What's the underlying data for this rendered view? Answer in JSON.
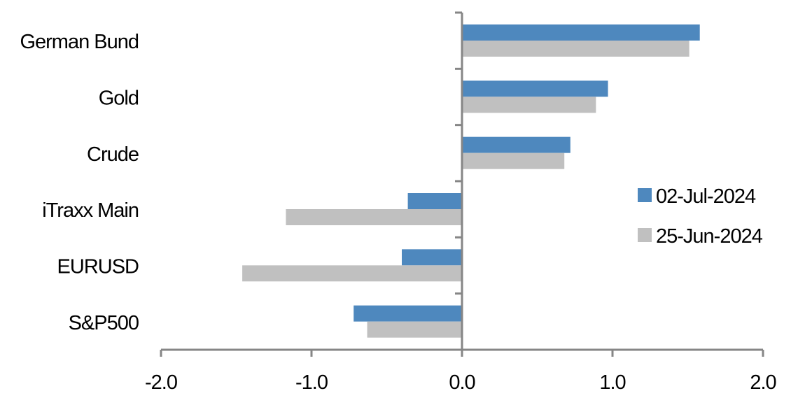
{
  "chart_data": {
    "type": "bar",
    "orientation": "horizontal",
    "categories": [
      "German Bund",
      "Gold",
      "Crude",
      "iTraxx Main",
      "EURUSD",
      "S&P500"
    ],
    "series": [
      {
        "name": "02-Jul-2024",
        "color": "#4E88BE",
        "values": [
          1.58,
          0.97,
          0.72,
          -0.36,
          -0.4,
          -0.72
        ]
      },
      {
        "name": "25-Jun-2024",
        "color": "#C0C0C0",
        "values": [
          1.51,
          0.89,
          0.68,
          -1.17,
          -1.46,
          -0.63
        ]
      }
    ],
    "xlim": [
      -2.0,
      2.0
    ],
    "xticks": [
      "-2.0",
      "-1.0",
      "0.0",
      "1.0",
      "2.0"
    ],
    "xtick_values": [
      -2,
      -1,
      0,
      1,
      2
    ],
    "grid": false,
    "legend_position": "right",
    "axis_color": "#868686"
  }
}
